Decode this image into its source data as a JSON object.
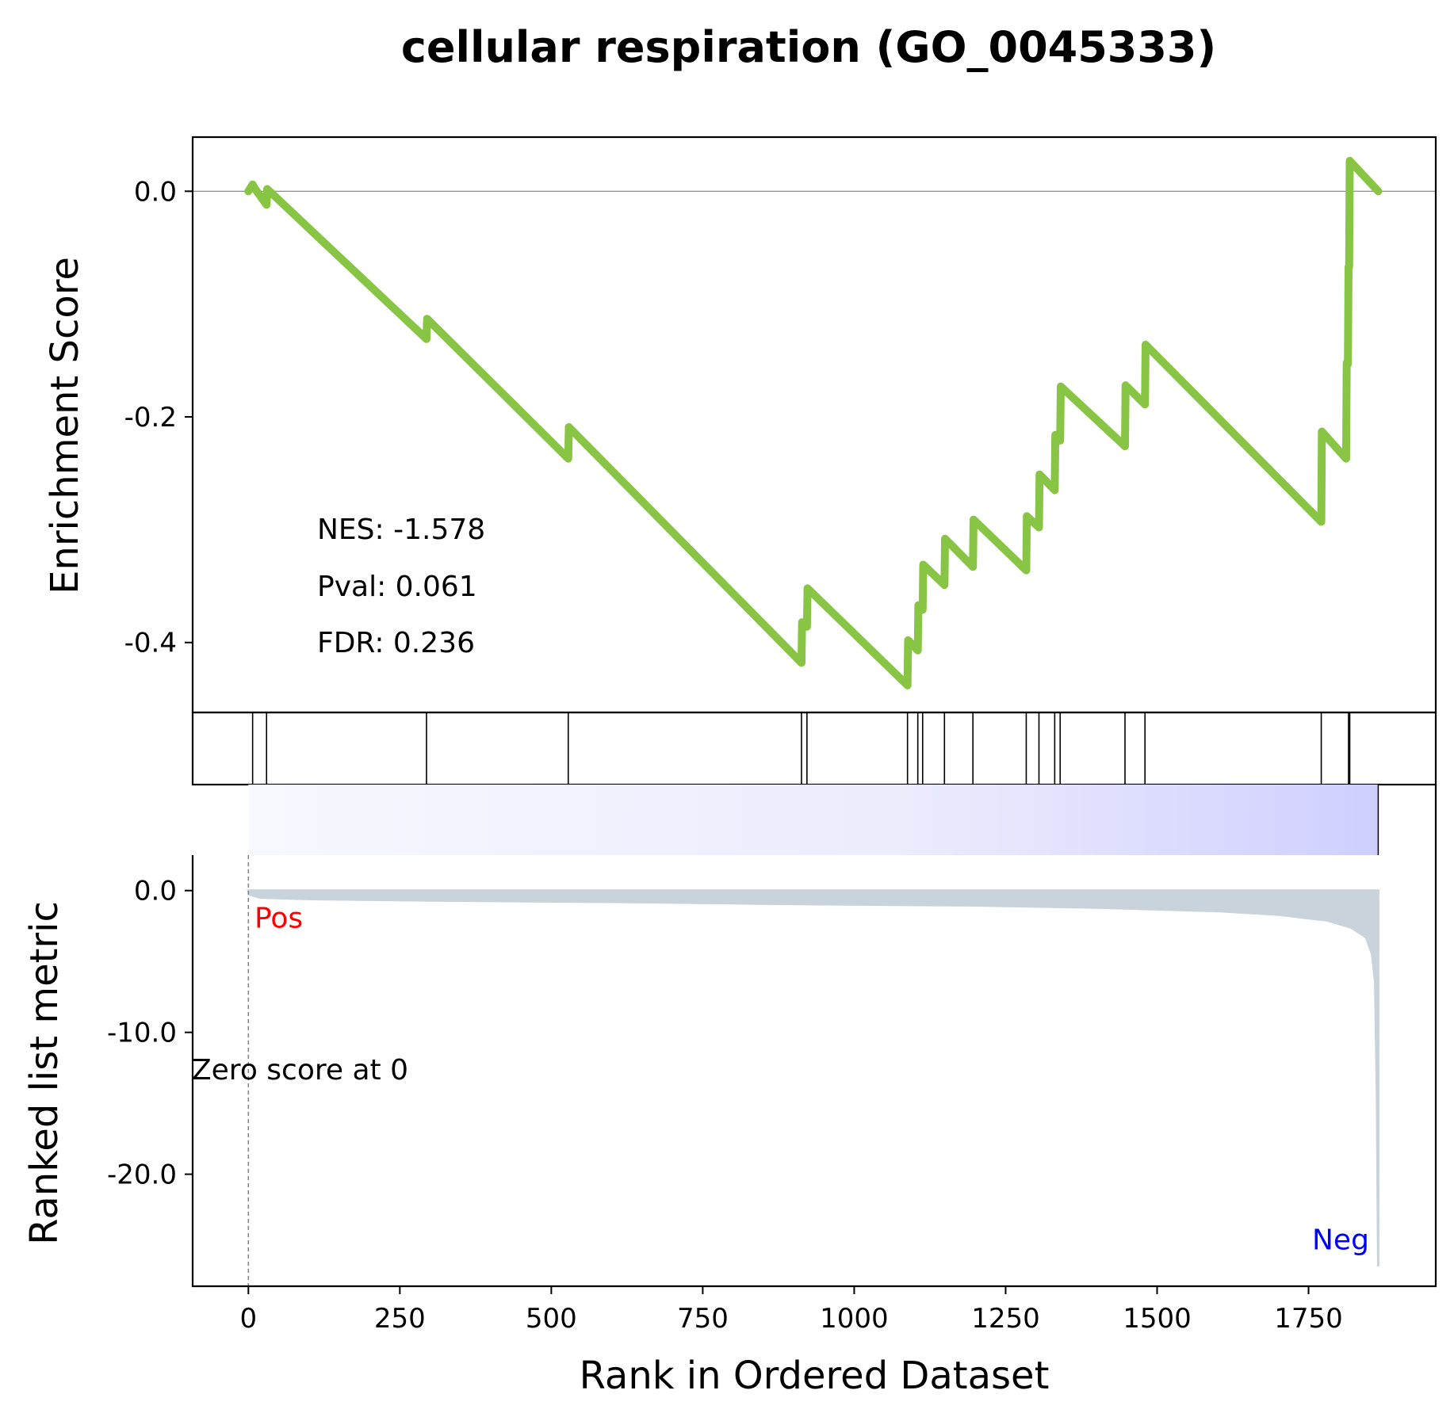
{
  "chart_data": {
    "type": "line",
    "title": "cellular respiration (GO_0045333)",
    "xlabel": "Rank in Ordered Dataset",
    "xlim": [
      -92,
      1960
    ],
    "x_ticks": [
      0,
      250,
      500,
      750,
      1000,
      1250,
      1500,
      1750
    ],
    "x_tick_labels": [
      "0",
      "250",
      "500",
      "750",
      "1000",
      "1250",
      "1500",
      "1750"
    ],
    "es_panel": {
      "ylabel": "Enrichment Score",
      "ylim": [
        -0.462,
        0.048
      ],
      "y_ticks": [
        0.0,
        -0.2,
        -0.4
      ],
      "y_tick_labels": [
        "0.0",
        "-0.2",
        "-0.4"
      ],
      "color": "#88c544",
      "zero_line": true,
      "points": [
        [
          0,
          0.0
        ],
        [
          7,
          0.006
        ],
        [
          10,
          0.003
        ],
        [
          30,
          -0.012
        ],
        [
          31,
          0.002
        ],
        [
          294,
          -0.131
        ],
        [
          295,
          -0.113
        ],
        [
          528,
          -0.237
        ],
        [
          529,
          -0.209
        ],
        [
          913,
          -0.418
        ],
        [
          914,
          -0.382
        ],
        [
          922,
          -0.386
        ],
        [
          923,
          -0.352
        ],
        [
          1088,
          -0.438
        ],
        [
          1089,
          -0.398
        ],
        [
          1105,
          -0.407
        ],
        [
          1106,
          -0.367
        ],
        [
          1113,
          -0.371
        ],
        [
          1114,
          -0.331
        ],
        [
          1149,
          -0.349
        ],
        [
          1150,
          -0.308
        ],
        [
          1196,
          -0.333
        ],
        [
          1197,
          -0.291
        ],
        [
          1284,
          -0.336
        ],
        [
          1285,
          -0.288
        ],
        [
          1305,
          -0.298
        ],
        [
          1306,
          -0.251
        ],
        [
          1331,
          -0.265
        ],
        [
          1332,
          -0.216
        ],
        [
          1340,
          -0.221
        ],
        [
          1341,
          -0.173
        ],
        [
          1447,
          -0.226
        ],
        [
          1448,
          -0.172
        ],
        [
          1480,
          -0.189
        ],
        [
          1481,
          -0.136
        ],
        [
          1771,
          -0.293
        ],
        [
          1772,
          -0.213
        ],
        [
          1812,
          -0.237
        ],
        [
          1813,
          -0.152
        ],
        [
          1815,
          -0.153
        ],
        [
          1816,
          -0.067
        ],
        [
          1817,
          -0.067
        ],
        [
          1818,
          0.027
        ],
        [
          1865,
          0.0
        ]
      ]
    },
    "hits_panel": {
      "hit_ranks": [
        7,
        30,
        294,
        528,
        913,
        922,
        1088,
        1105,
        1113,
        1149,
        1196,
        1284,
        1305,
        1331,
        1340,
        1447,
        1480,
        1771,
        1816,
        1818
      ]
    },
    "rank_panel": {
      "ylabel": "Ranked list metric",
      "ylim": [
        -27.9,
        2.5
      ],
      "y_ticks": [
        0.0,
        -10.0,
        -20.0
      ],
      "y_tick_labels": [
        "0.0",
        "-10.0",
        "-20.0"
      ],
      "fill_color": "#c8d3dc",
      "n_genes": 1866,
      "metric_curve": [
        [
          0,
          0.0
        ],
        [
          3,
          -0.3
        ],
        [
          20,
          -0.5
        ],
        [
          100,
          -0.6
        ],
        [
          300,
          -0.7
        ],
        [
          600,
          -0.8
        ],
        [
          900,
          -0.95
        ],
        [
          1200,
          -1.05
        ],
        [
          1400,
          -1.2
        ],
        [
          1600,
          -1.45
        ],
        [
          1700,
          -1.7
        ],
        [
          1780,
          -2.1
        ],
        [
          1820,
          -2.6
        ],
        [
          1845,
          -3.3
        ],
        [
          1855,
          -4.5
        ],
        [
          1860,
          -6.5
        ],
        [
          1863,
          -15.0
        ],
        [
          1865,
          -26.5
        ]
      ],
      "zero_score_label": "Zero score at 0",
      "zero_score_rank": 0,
      "pos_label": "Pos",
      "neg_label": "Neg",
      "pos_color": "#ff0000",
      "neg_color": "#0000ff",
      "gradient_colors": [
        "#f8f8ff",
        "#cfcfff"
      ]
    },
    "annotations": [
      {
        "key": "nes",
        "text": "NES: -1.578"
      },
      {
        "key": "pval",
        "text": "Pval: 0.061"
      },
      {
        "key": "fdr",
        "text": "FDR: 0.236"
      }
    ]
  }
}
